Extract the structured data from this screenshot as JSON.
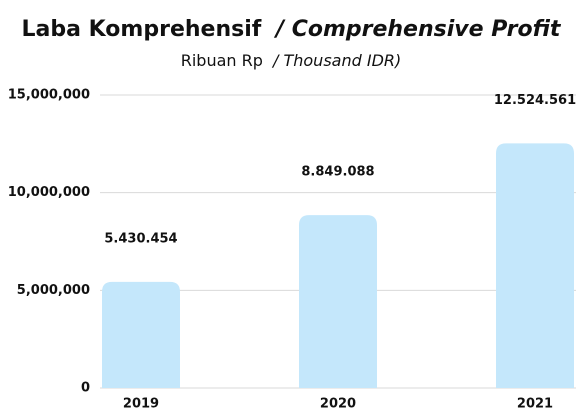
{
  "chart_data": {
    "type": "bar",
    "title": [
      "Laba Komprehensif",
      "/ Comprehensive Profit"
    ],
    "subtitle": [
      "Ribuan Rp",
      "/ Thousand IDR)"
    ],
    "categories": [
      "2019",
      "2020",
      "2021"
    ],
    "values": [
      5430454,
      8849088,
      12524561
    ],
    "value_labels": [
      "5.430.454",
      "8.849.088",
      "12.524.561"
    ],
    "color": "#c4e7fb",
    "ylim": [
      0,
      15000000
    ],
    "yticks": [
      0,
      {
        "value": 5000000,
        "label": "5,000,000"
      },
      {
        "value": 10000000,
        "label": "10,000,000"
      },
      {
        "value": 15000000,
        "label": "15,000,000"
      }
    ],
    "grid": true
  }
}
